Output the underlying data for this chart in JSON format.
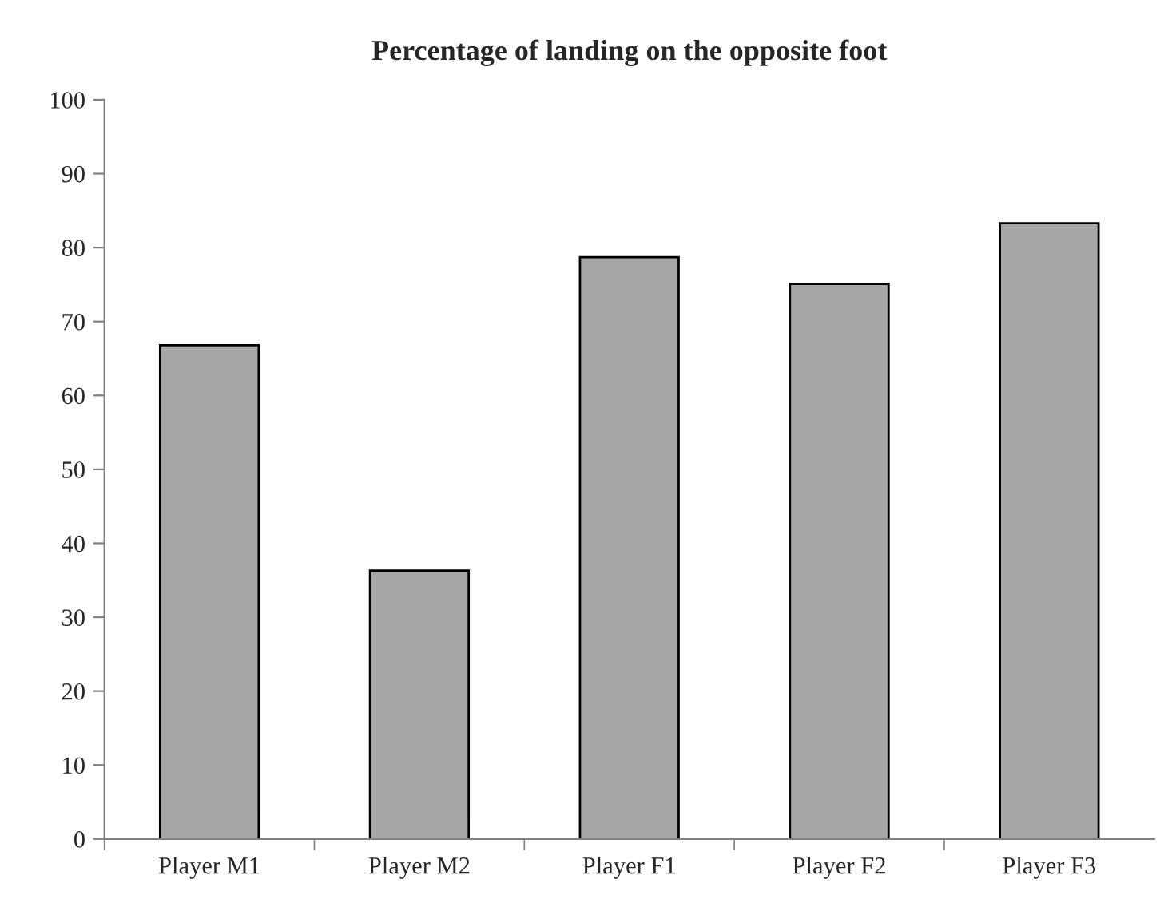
{
  "chart_data": {
    "type": "bar",
    "title": "Percentage of landing on the opposite foot",
    "categories": [
      "Player M1",
      "Player M2",
      "Player F1",
      "Player F2",
      "Player F3"
    ],
    "values": [
      66.8,
      36.3,
      78.7,
      75.1,
      83.3
    ],
    "color": "#a6a6a6",
    "ylim": [
      0,
      100
    ],
    "yticks": [
      0,
      10,
      20,
      30,
      40,
      50,
      60,
      70,
      80,
      90,
      100
    ],
    "grid": false,
    "legend": false
  }
}
